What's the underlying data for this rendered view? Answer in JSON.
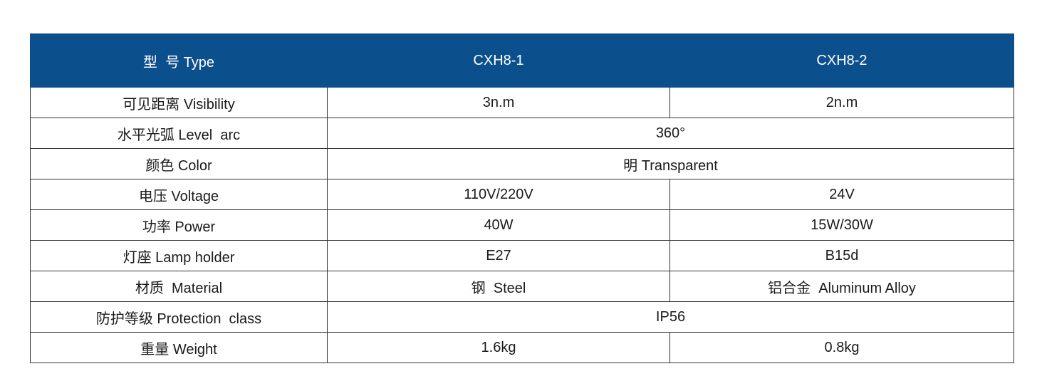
{
  "header": {
    "type_label": "型  号 Type",
    "models": [
      "CXH8-1",
      "CXH8-2"
    ]
  },
  "header_color": "#0b4f8c",
  "rows": [
    {
      "label": "可见距离 Visibility",
      "values": [
        "3n.m",
        "2n.m"
      ]
    },
    {
      "label": "水平光弧 Level  arc",
      "values": [
        "360°"
      ]
    },
    {
      "label": "颜色 Color",
      "values": [
        "明 Transparent"
      ]
    },
    {
      "label": "电压 Voltage",
      "values": [
        "110V/220V",
        "24V"
      ]
    },
    {
      "label": "功率 Power",
      "values": [
        "40W",
        "15W/30W"
      ]
    },
    {
      "label": "灯座 Lamp holder",
      "values": [
        "E27",
        "B15d"
      ]
    },
    {
      "label": "材质  Material",
      "values": [
        "钢  Steel",
        "铝合金  Aluminum Alloy"
      ]
    },
    {
      "label": "防护等级 Protection  class",
      "values": [
        "IP56"
      ]
    },
    {
      "label": "重量 Weight",
      "values": [
        "1.6kg",
        "0.8kg"
      ]
    }
  ]
}
